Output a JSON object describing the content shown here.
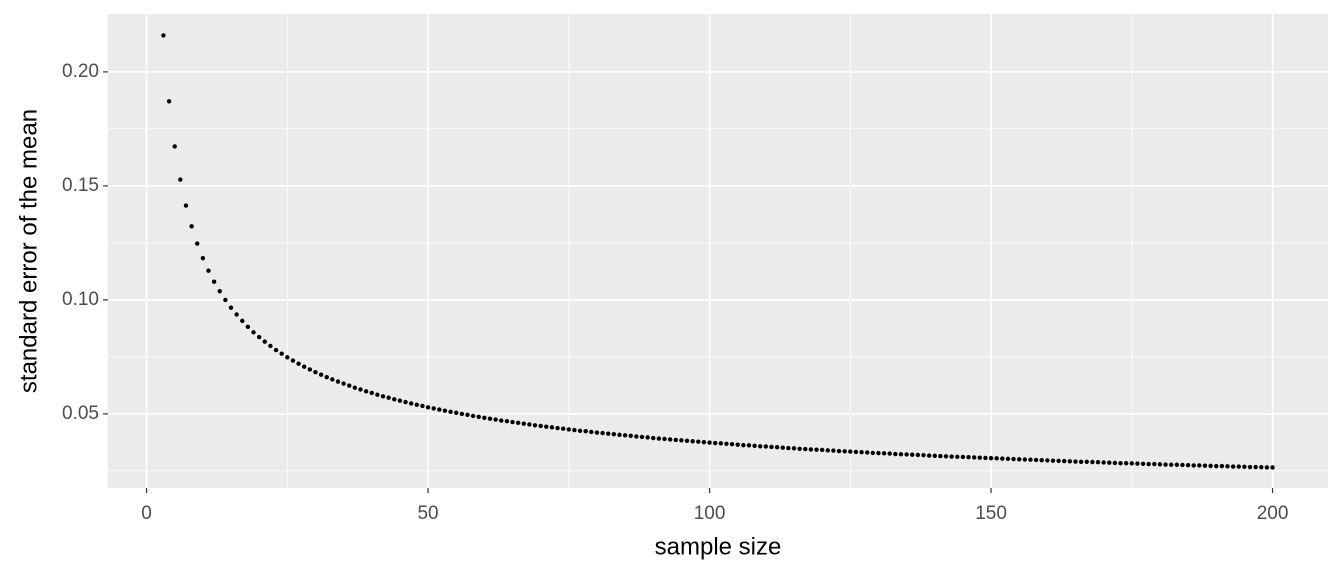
{
  "chart_data": {
    "type": "scatter",
    "x_label": "sample size",
    "y_label": "standard error of the mean",
    "color": "#000000",
    "panel_color": "#ebebeb",
    "grid": true,
    "xlim": [
      -6.85,
      209.85
    ],
    "ylim": [
      0.0175,
      0.2254
    ],
    "xticks": [
      0,
      50,
      100,
      150,
      200
    ],
    "yticks": [
      {
        "value": 0.05,
        "label": "0.05"
      },
      {
        "value": 0.1,
        "label": "0.10"
      },
      {
        "value": 0.15,
        "label": "0.15"
      },
      {
        "value": 0.2,
        "label": "0.20"
      }
    ],
    "xminor": [
      25,
      75,
      125,
      175
    ],
    "yminor": [
      0.025,
      0.075,
      0.125,
      0.175
    ],
    "x": [
      3,
      4,
      5,
      6,
      7,
      8,
      9,
      10,
      11,
      12,
      13,
      14,
      15,
      16,
      17,
      18,
      19,
      20,
      21,
      22,
      23,
      24,
      25,
      26,
      27,
      28,
      29,
      30,
      31,
      32,
      33,
      34,
      35,
      36,
      37,
      38,
      39,
      40,
      41,
      42,
      43,
      44,
      45,
      46,
      47,
      48,
      49,
      50,
      51,
      52,
      53,
      54,
      55,
      56,
      57,
      58,
      59,
      60,
      61,
      62,
      63,
      64,
      65,
      66,
      67,
      68,
      69,
      70,
      71,
      72,
      73,
      74,
      75,
      76,
      77,
      78,
      79,
      80,
      81,
      82,
      83,
      84,
      85,
      86,
      87,
      88,
      89,
      90,
      91,
      92,
      93,
      94,
      95,
      96,
      97,
      98,
      99,
      100,
      101,
      102,
      103,
      104,
      105,
      106,
      107,
      108,
      109,
      110,
      111,
      112,
      113,
      114,
      115,
      116,
      117,
      118,
      119,
      120,
      121,
      122,
      123,
      124,
      125,
      126,
      127,
      128,
      129,
      130,
      131,
      132,
      133,
      134,
      135,
      136,
      137,
      138,
      139,
      140,
      141,
      142,
      143,
      144,
      145,
      146,
      147,
      148,
      149,
      150,
      151,
      152,
      153,
      154,
      155,
      156,
      157,
      158,
      159,
      160,
      161,
      162,
      163,
      164,
      165,
      166,
      167,
      168,
      169,
      170,
      171,
      172,
      173,
      174,
      175,
      176,
      177,
      178,
      179,
      180,
      181,
      182,
      183,
      184,
      185,
      186,
      187,
      188,
      189,
      190,
      191,
      192,
      193,
      194,
      195,
      196,
      197,
      198,
      199,
      200
    ],
    "values": [
      0.216,
      0.1871,
      0.1673,
      0.1528,
      0.1414,
      0.1323,
      0.1247,
      0.1183,
      0.1128,
      0.108,
      0.1038,
      0.1,
      0.0966,
      0.0936,
      0.0908,
      0.0882,
      0.0858,
      0.0837,
      0.0817,
      0.0798,
      0.078,
      0.0764,
      0.0748,
      0.0734,
      0.072,
      0.0707,
      0.0695,
      0.0683,
      0.0672,
      0.0661,
      0.0651,
      0.0642,
      0.0633,
      0.0624,
      0.0615,
      0.0607,
      0.0599,
      0.0592,
      0.0584,
      0.0577,
      0.0571,
      0.0564,
      0.0558,
      0.0552,
      0.0546,
      0.054,
      0.0535,
      0.0529,
      0.0524,
      0.0519,
      0.0514,
      0.0509,
      0.0505,
      0.05,
      0.0496,
      0.0491,
      0.0487,
      0.0483,
      0.0479,
      0.0475,
      0.0471,
      0.0468,
      0.0464,
      0.0461,
      0.0457,
      0.0454,
      0.045,
      0.0447,
      0.0444,
      0.0441,
      0.0438,
      0.0435,
      0.0432,
      0.0429,
      0.0426,
      0.0424,
      0.0421,
      0.0418,
      0.0416,
      0.0413,
      0.0411,
      0.0408,
      0.0406,
      0.0404,
      0.0401,
      0.0399,
      0.0397,
      0.0394,
      0.0392,
      0.039,
      0.0388,
      0.0386,
      0.0384,
      0.0382,
      0.038,
      0.0378,
      0.0376,
      0.0374,
      0.0372,
      0.0371,
      0.0369,
      0.0367,
      0.0365,
      0.0363,
      0.0362,
      0.036,
      0.0358,
      0.0357,
      0.0355,
      0.0354,
      0.0352,
      0.035,
      0.0349,
      0.0347,
      0.0346,
      0.0344,
      0.0343,
      0.0342,
      0.034,
      0.0339,
      0.0337,
      0.0336,
      0.0335,
      0.0333,
      0.0332,
      0.0331,
      0.0329,
      0.0328,
      0.0327,
      0.0326,
      0.0324,
      0.0323,
      0.0322,
      0.0321,
      0.032,
      0.0319,
      0.0317,
      0.0316,
      0.0315,
      0.0314,
      0.0313,
      0.0312,
      0.0311,
      0.031,
      0.0309,
      0.0308,
      0.0307,
      0.0306,
      0.0305,
      0.0304,
      0.0303,
      0.0302,
      0.0301,
      0.03,
      0.0299,
      0.0298,
      0.0297,
      0.0296,
      0.0295,
      0.0294,
      0.0293,
      0.0292,
      0.0291,
      0.029,
      0.029,
      0.0289,
      0.0288,
      0.0287,
      0.0286,
      0.0285,
      0.0284,
      0.0284,
      0.0283,
      0.0282,
      0.0281,
      0.028,
      0.028,
      0.0279,
      0.0278,
      0.0277,
      0.0277,
      0.0276,
      0.0275,
      0.0274,
      0.0274,
      0.0273,
      0.0272,
      0.0271,
      0.0271,
      0.027,
      0.0269,
      0.0269,
      0.0268,
      0.0267,
      0.0267,
      0.0266,
      0.0265,
      0.0265
    ]
  }
}
